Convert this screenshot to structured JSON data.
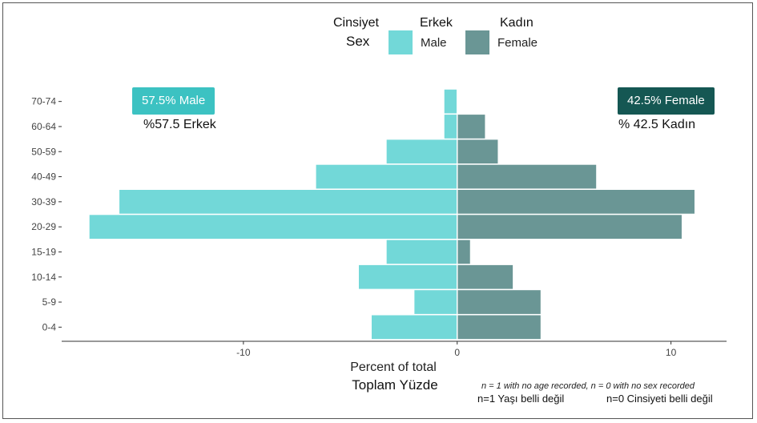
{
  "legend": {
    "title_tr": "Cinsiyet",
    "title_en": "Sex",
    "male_tr": "Erkek",
    "male_en": "Male",
    "female_tr": "Kadın",
    "female_en": "Female",
    "male_color": "#72d8d8",
    "female_color": "#6a9695"
  },
  "badges": {
    "male_label": "57.5% Male",
    "male_color": "#3cc2c2",
    "male_tr": "%57.5  Erkek",
    "female_label": "42.5% Female",
    "female_color": "#155753",
    "female_tr": "% 42.5  Kadın"
  },
  "axis": {
    "xlabel_en": "Percent of total",
    "xlabel_tr": "Toplam Yüzde"
  },
  "notes": {
    "en": "n = 1 with no age recorded, n = 0 with no sex recorded",
    "tr_age": "n=1 Yaşı belli değil",
    "tr_sex": "n=0 Cinsiyeti belli değil"
  },
  "chart_data": {
    "type": "bar",
    "orientation": "horizontal",
    "subtype": "population-pyramid",
    "categories": [
      "0-4",
      "5-9",
      "10-14",
      "15-19",
      "20-29",
      "30-39",
      "40-49",
      "50-59",
      "60-64",
      "70-74"
    ],
    "series": [
      {
        "name": "Male",
        "values": [
          -4.0,
          -2.0,
          -4.6,
          -3.3,
          -17.2,
          -15.8,
          -6.6,
          -3.3,
          -0.6,
          -0.6
        ]
      },
      {
        "name": "Female",
        "values": [
          3.9,
          3.9,
          2.6,
          0.6,
          10.5,
          11.1,
          6.5,
          1.9,
          1.3,
          0
        ]
      }
    ],
    "xlim": [
      -18.5,
      12.6
    ],
    "xticks": [
      -10,
      0,
      10
    ],
    "xtick_labels": [
      "-10",
      "0",
      "10"
    ],
    "xlabel": "Percent of total",
    "ylabel": "",
    "grid": false,
    "legend": "top"
  }
}
